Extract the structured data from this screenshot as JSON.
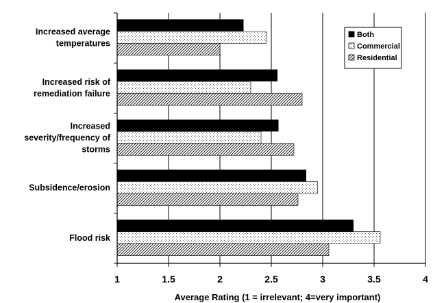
{
  "chart_data": {
    "type": "bar",
    "orientation": "horizontal",
    "categories": [
      "Increased average temperatures",
      "Increased risk of remediation failure",
      "Increased severity/frequency of storms",
      "Subsidence/erosion",
      "Flood risk"
    ],
    "category_label_lines": [
      [
        "Increased average",
        "temperatures"
      ],
      [
        "Increased risk of",
        "remediation failure"
      ],
      [
        "Increased",
        "severity/frequency of",
        "storms"
      ],
      [
        "Subsidence/erosion"
      ],
      [
        "Flood risk"
      ]
    ],
    "series": [
      {
        "name": "Both",
        "values": [
          2.23,
          2.56,
          2.57,
          2.84,
          3.3
        ],
        "pattern": "solid",
        "color": "#000000"
      },
      {
        "name": "Commercial",
        "values": [
          2.45,
          2.3,
          2.4,
          2.95,
          3.56
        ],
        "pattern": "dots",
        "color": "#ffffff"
      },
      {
        "name": "Residential",
        "values": [
          2.0,
          2.8,
          2.72,
          2.76,
          3.06
        ],
        "pattern": "diagonal",
        "color": "#ffffff"
      }
    ],
    "xlabel": "Average Rating (1 = irrelevant; 4=very important)",
    "xlim": [
      1,
      4
    ],
    "xticks": [
      1,
      1.5,
      2,
      2.5,
      3,
      3.5,
      4
    ],
    "xtick_labels": [
      "1",
      "1.5",
      "2",
      "2.5",
      "3",
      "3.5",
      "4"
    ],
    "grid": "vertical",
    "legend_position": "top-right"
  }
}
